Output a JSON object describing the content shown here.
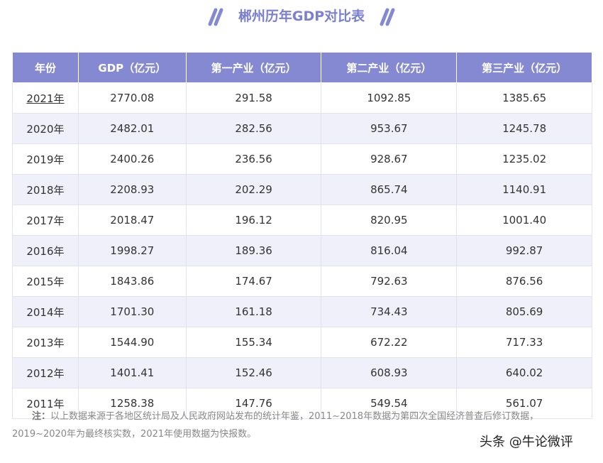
{
  "header": {
    "title": "郴州历年GDP对比表"
  },
  "table": {
    "columns": [
      "年份",
      "GDP（亿元）",
      "第一产业（亿元）",
      "第二产业（亿元）",
      "第三产业（亿元）"
    ],
    "rows": [
      [
        "2021年",
        "2770.08",
        "291.58",
        "1092.85",
        "1385.65"
      ],
      [
        "2020年",
        "2482.01",
        "282.56",
        "953.67",
        "1245.78"
      ],
      [
        "2019年",
        "2400.26",
        "236.56",
        "928.67",
        "1235.02"
      ],
      [
        "2018年",
        "2208.93",
        "202.29",
        "865.74",
        "1140.91"
      ],
      [
        "2017年",
        "2018.47",
        "196.12",
        "820.95",
        "1001.40"
      ],
      [
        "2016年",
        "1998.27",
        "189.36",
        "816.04",
        "992.87"
      ],
      [
        "2015年",
        "1843.86",
        "174.67",
        "792.63",
        "876.56"
      ],
      [
        "2014年",
        "1701.30",
        "161.18",
        "734.43",
        "805.69"
      ],
      [
        "2013年",
        "1544.90",
        "155.34",
        "672.22",
        "717.33"
      ],
      [
        "2012年",
        "1401.41",
        "152.46",
        "608.93",
        "640.02"
      ],
      [
        "2011年",
        "1258.38",
        "147.76",
        "549.54",
        "561.07"
      ]
    ]
  },
  "note": {
    "label": "注：",
    "text": "以上数据来源于各地区统计局及人民政府网站发布的统计年鉴，2011~2018年数据为第四次全国经济普查后修订数据，2019~2020年为最终核实数，2021年使用数据为快报数。"
  },
  "watermark": "头条 @牛论微评"
}
